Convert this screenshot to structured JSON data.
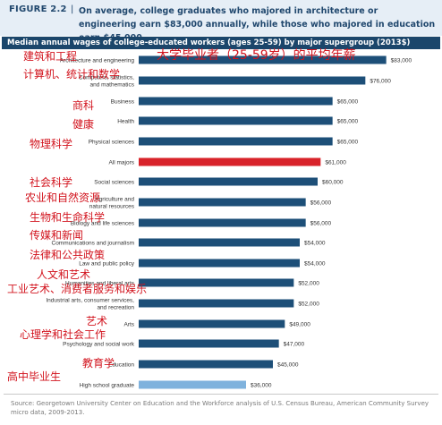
{
  "figure": {
    "label": "FIGURE 2.2",
    "separator": "|",
    "headline": "On average, college graduates who majored in architecture or engineering earn $83,000 annually, while those who majored in education earn $45,000."
  },
  "subtitle": "Median annual wages of college-educated workers (ages 25-59) by major supergroup (2013$)",
  "overlay_cn": {
    "title": "大学毕业者（25-59岁）的平均年薪",
    "labels": [
      "建筑和工程",
      "计算机、统计和数学",
      "商科",
      "健康",
      "物理科学",
      "社会科学",
      "农业和自然资源",
      "生物和生命科学",
      "传媒和新闻",
      "法律和公共政策",
      "人文和艺术",
      "工业艺术、消费者服务和娱乐",
      "艺术",
      "心理学和社会工作",
      "教育学",
      "高中毕业生"
    ]
  },
  "source": "Source: Georgetown University Center on Education and the Workforce analysis of U.S. Census Bureau, American Community Survey micro data, 2009-2013.",
  "colors": {
    "bar": "#1d4f78",
    "highlight": "#d8232a",
    "light": "#7fb2dd",
    "label": "#333333"
  },
  "chart_data": {
    "type": "bar",
    "orientation": "horizontal",
    "categories": [
      "Architecture and engineering",
      "Computers, statistics, and mathematics",
      "Business",
      "Health",
      "Physical sciences",
      "All majors",
      "Social sciences",
      "Agriculture and natural resources",
      "Biology and life sciences",
      "Communications and journalism",
      "Law and public policy",
      "Humanities and liberal arts",
      "Industrial arts, consumer services, and recreation",
      "Arts",
      "Psychology and social work",
      "Education",
      "High school graduate"
    ],
    "values": [
      83000,
      76000,
      65000,
      65000,
      65000,
      61000,
      60000,
      56000,
      56000,
      54000,
      54000,
      52000,
      52000,
      49000,
      47000,
      45000,
      36000
    ],
    "value_labels": [
      "$83,000",
      "$76,000",
      "$65,000",
      "$65,000",
      "$65,000",
      "$61,000",
      "$60,000",
      "$56,000",
      "$56,000",
      "$54,000",
      "$54,000",
      "$52,000",
      "$52,000",
      "$49,000",
      "$47,000",
      "$45,000",
      "$36,000"
    ],
    "highlight": {
      "All majors": "#d8232a",
      "High school graduate": "#7fb2dd"
    },
    "xlim": [
      0,
      90000
    ],
    "title": "Median annual wages of college-educated workers (ages 25-59) by major supergroup (2013$)"
  }
}
